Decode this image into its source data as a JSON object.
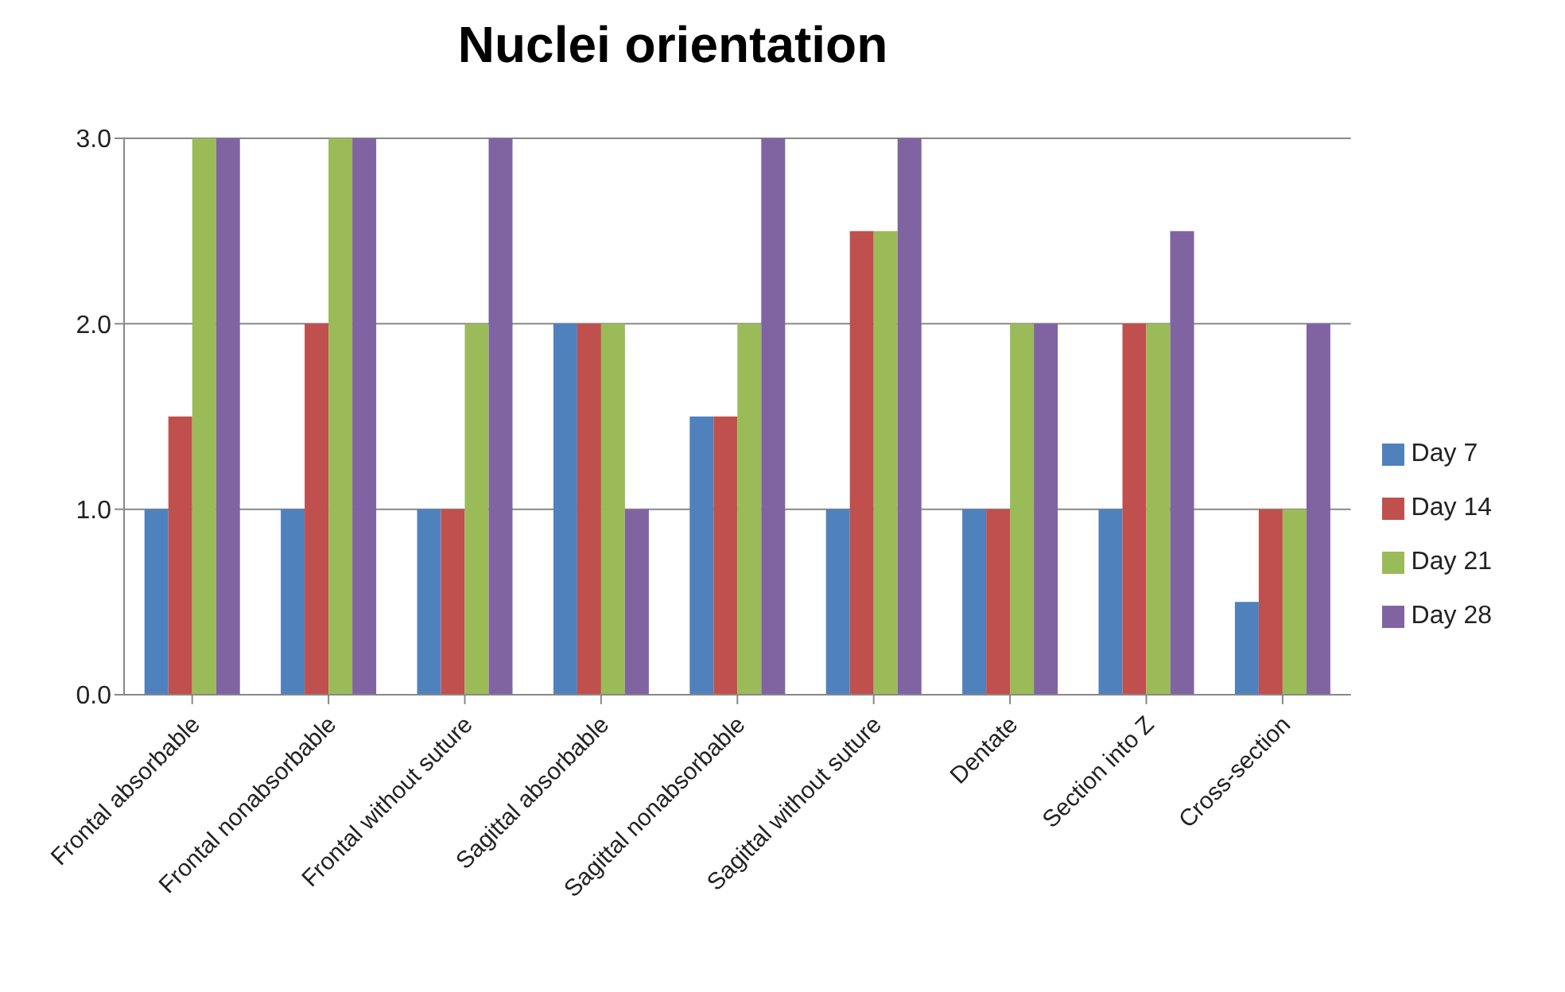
{
  "chart_data": {
    "type": "bar",
    "title": "Nuclei orientation",
    "categories": [
      "Frontal absorbable",
      "Frontal nonabsorbable",
      "Frontal without suture",
      "Sagittal absorbable",
      "Sagittal nonabsorbable",
      "Sagittal without suture",
      "Dentate",
      "Section into Z",
      "Cross-section"
    ],
    "series": [
      {
        "name": "Day 7",
        "color": "#4f81bd",
        "values": [
          1,
          1,
          1,
          2,
          1.5,
          1,
          1,
          1,
          0.5
        ]
      },
      {
        "name": "Day 14",
        "color": "#c0504d",
        "values": [
          1.5,
          2,
          1,
          2,
          1.5,
          2.5,
          1,
          2,
          1
        ]
      },
      {
        "name": "Day 21",
        "color": "#9bbb59",
        "values": [
          3,
          3,
          2,
          2,
          2,
          2.5,
          2,
          2,
          1
        ]
      },
      {
        "name": "Day 28",
        "color": "#8064a2",
        "values": [
          3,
          3,
          3,
          1,
          3,
          3,
          2,
          2.5,
          2
        ]
      }
    ],
    "ylim": [
      0,
      3
    ],
    "yticks": [
      {
        "value": 0,
        "label": "0.0"
      },
      {
        "value": 1,
        "label": "1.0"
      },
      {
        "value": 2,
        "label": "2.0"
      },
      {
        "value": 3,
        "label": "3.0"
      }
    ],
    "grid": "y",
    "legend": "right"
  }
}
